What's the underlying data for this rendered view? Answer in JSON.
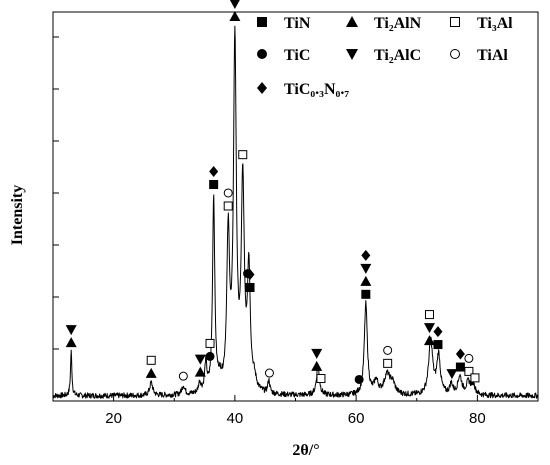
{
  "chart_data": {
    "type": "line",
    "title": "",
    "xlabel": "2θ/°",
    "ylabel": "Intensity",
    "xlim": [
      10,
      90
    ],
    "x_ticks": [
      20,
      40,
      60,
      80
    ],
    "grid": false,
    "legend": {
      "placement": "top-right",
      "entries": [
        {
          "marker": "square-filled",
          "label": "TiN"
        },
        {
          "marker": "triangle-up-filled",
          "label": "Ti₂AlN"
        },
        {
          "marker": "square-open",
          "label": "Ti₃Al"
        },
        {
          "marker": "circle-filled",
          "label": "TiC"
        },
        {
          "marker": "triangle-down-filled",
          "label": "Ti₂AlC"
        },
        {
          "marker": "circle-open",
          "label": "TiAl"
        },
        {
          "marker": "diamond-filled",
          "label": "TiC₀.₃N₀.₇"
        }
      ]
    },
    "series": [
      {
        "color": "#000000",
        "baseline": 4,
        "peaks": [
          {
            "x": 13.0,
            "h": 34,
            "w": 0.14
          },
          {
            "x": 26.2,
            "h": 10,
            "w": 0.3
          },
          {
            "x": 31.5,
            "h": 7,
            "w": 0.3
          },
          {
            "x": 34.2,
            "h": 8,
            "w": 0.25
          },
          {
            "x": 35.2,
            "h": 22,
            "w": 0.22
          },
          {
            "x": 36.5,
            "h": 150,
            "w": 0.22
          },
          {
            "x": 37.5,
            "h": 8,
            "w": 0.4
          },
          {
            "x": 38.9,
            "h": 118,
            "w": 0.28
          },
          {
            "x": 40.0,
            "h": 268,
            "w": 0.28
          },
          {
            "x": 41.3,
            "h": 158,
            "w": 0.3
          },
          {
            "x": 42.3,
            "h": 92,
            "w": 0.28
          },
          {
            "x": 43.2,
            "h": 8,
            "w": 0.4
          },
          {
            "x": 45.6,
            "h": 10,
            "w": 0.2
          },
          {
            "x": 53.7,
            "h": 22,
            "w": 0.3
          },
          {
            "x": 61.6,
            "h": 70,
            "w": 0.3
          },
          {
            "x": 63.3,
            "h": 10,
            "w": 0.4
          },
          {
            "x": 65.1,
            "h": 15,
            "w": 0.6
          },
          {
            "x": 66.0,
            "h": 8,
            "w": 0.5
          },
          {
            "x": 72.3,
            "h": 42,
            "w": 0.4
          },
          {
            "x": 73.6,
            "h": 30,
            "w": 0.35
          },
          {
            "x": 75.7,
            "h": 8,
            "w": 0.3
          },
          {
            "x": 77.1,
            "h": 14,
            "w": 0.4
          },
          {
            "x": 78.5,
            "h": 9,
            "w": 0.4
          },
          {
            "x": 79.3,
            "h": 8,
            "w": 0.4
          }
        ]
      }
    ],
    "peak_markers": [
      {
        "x": 13.0,
        "markers": [
          "triangle-up-filled",
          "triangle-down-filled"
        ]
      },
      {
        "x": 26.2,
        "markers": [
          "triangle-up-filled",
          "square-open"
        ]
      },
      {
        "x": 31.5,
        "markers": [
          "circle-open"
        ]
      },
      {
        "x": 34.3,
        "markers": [
          "triangle-up-filled",
          "triangle-down-filled"
        ]
      },
      {
        "x": 35.9,
        "markers": [
          "circle-filled",
          "square-open"
        ]
      },
      {
        "x": 36.5,
        "markers": [
          "square-filled",
          "diamond-filled"
        ]
      },
      {
        "x": 38.9,
        "markers": [
          "square-open",
          "circle-open"
        ]
      },
      {
        "x": 40.0,
        "markers": [
          "triangle-up-filled",
          "triangle-down-filled"
        ]
      },
      {
        "x": 41.3,
        "markers": [
          "square-open"
        ]
      },
      {
        "x": 42.1,
        "markers": [
          "circle-filled"
        ]
      },
      {
        "x": 42.5,
        "markers": [
          "square-filled",
          "diamond-filled"
        ]
      },
      {
        "x": 45.7,
        "markers": [
          "circle-open"
        ]
      },
      {
        "x": 53.5,
        "markers": [
          "triangle-up-filled",
          "triangle-down-filled"
        ]
      },
      {
        "x": 54.2,
        "markers": [
          "square-open"
        ]
      },
      {
        "x": 60.5,
        "markers": [
          "circle-filled"
        ]
      },
      {
        "x": 61.6,
        "markers": [
          "square-filled",
          "triangle-up-filled",
          "triangle-down-filled",
          "diamond-filled"
        ]
      },
      {
        "x": 65.2,
        "markers": [
          "square-open",
          "circle-open"
        ]
      },
      {
        "x": 72.1,
        "markers": [
          "triangle-up-filled",
          "triangle-down-filled",
          "square-open"
        ]
      },
      {
        "x": 73.5,
        "markers": [
          "square-filled",
          "diamond-filled"
        ]
      },
      {
        "x": 75.8,
        "markers": [
          "triangle-down-filled"
        ]
      },
      {
        "x": 77.2,
        "markers": [
          "square-filled",
          "diamond-filled"
        ]
      },
      {
        "x": 78.6,
        "markers": [
          "square-open",
          "circle-open"
        ]
      },
      {
        "x": 79.6,
        "markers": [
          "square-open"
        ]
      }
    ]
  }
}
